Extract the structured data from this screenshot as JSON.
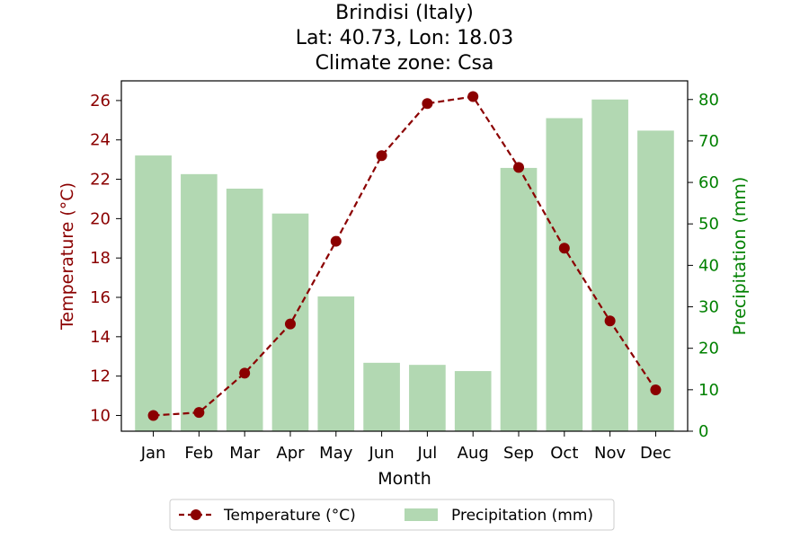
{
  "title": {
    "line1": "Brindisi (Italy)",
    "line2": "Lat: 40.73, Lon: 18.03",
    "line3": "Climate zone: Csa"
  },
  "colors": {
    "temperature": "#8b0000",
    "precipitation": "#008000",
    "bars": "#b2d8b2",
    "marker_face": "#8b0000"
  },
  "chart_data": {
    "type": "bar+line",
    "categories": [
      "Jan",
      "Feb",
      "Mar",
      "Apr",
      "May",
      "Jun",
      "Jul",
      "Aug",
      "Sep",
      "Oct",
      "Nov",
      "Dec"
    ],
    "series": [
      {
        "name": "Temperature (°C)",
        "type": "line",
        "axis": "left",
        "values": [
          10.0,
          10.15,
          12.15,
          14.65,
          18.85,
          23.2,
          25.85,
          26.2,
          22.6,
          18.5,
          14.8,
          11.3
        ]
      },
      {
        "name": "Precipitation (mm)",
        "type": "bar",
        "axis": "right",
        "values": [
          66.5,
          62.0,
          58.5,
          52.5,
          32.5,
          16.5,
          16.0,
          14.5,
          63.5,
          75.5,
          80.0,
          72.5
        ]
      }
    ],
    "xlabel": "Month",
    "ylabel_left": "Temperature (°C)",
    "ylabel_right": "Precipitation (mm)",
    "ylim_left": [
      9.2,
      27.0
    ],
    "ylim_right": [
      0,
      84.5
    ],
    "yticks_left": [
      10,
      12,
      14,
      16,
      18,
      20,
      22,
      24,
      26
    ],
    "yticks_right": [
      0,
      10,
      20,
      30,
      40,
      50,
      60,
      70,
      80
    ],
    "grid": false,
    "legend_position": "bottom-center"
  }
}
